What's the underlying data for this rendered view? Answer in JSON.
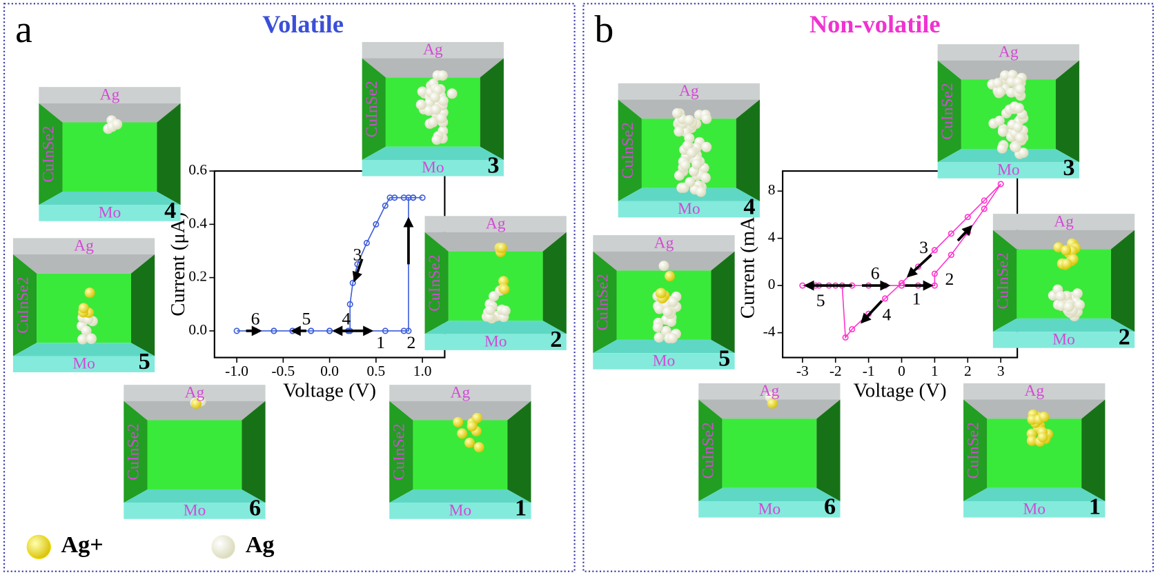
{
  "panels": [
    {
      "letter": "a",
      "title": "Volatile",
      "title_color": "#3a4fd8",
      "cells": [
        {
          "top": "Ag",
          "side": "CuInSe2",
          "bottom": "Mo",
          "number": "4"
        },
        {
          "top": "Ag",
          "side": "CuInSe2",
          "bottom": "Mo",
          "number": "3"
        },
        {
          "top": "Ag",
          "side": "CuInSe2",
          "bottom": "Mo",
          "number": "5"
        },
        {
          "top": "Ag",
          "side": "CuInSe2",
          "bottom": "Mo",
          "number": "2"
        },
        {
          "top": "Ag",
          "side": "CuInSe2",
          "bottom": "Mo",
          "number": "6"
        },
        {
          "top": "Ag",
          "side": "CuInSe2",
          "bottom": "Mo",
          "number": "1"
        }
      ]
    },
    {
      "letter": "b",
      "title": "Non-volatile",
      "title_color": "#f032d0",
      "cells": [
        {
          "top": "Ag",
          "side": "CuInSe2",
          "bottom": "Mo",
          "number": "4"
        },
        {
          "top": "Ag",
          "side": "CuInSe2",
          "bottom": "Mo",
          "number": "3"
        },
        {
          "top": "Ag",
          "side": "CuInSe2",
          "bottom": "Mo",
          "number": "5"
        },
        {
          "top": "Ag",
          "side": "CuInSe2",
          "bottom": "Mo",
          "number": "2"
        },
        {
          "top": "Ag",
          "side": "CuInSe2",
          "bottom": "Mo",
          "number": "6"
        },
        {
          "top": "Ag",
          "side": "CuInSe2",
          "bottom": "Mo",
          "number": "1"
        }
      ]
    }
  ],
  "legend": [
    {
      "label": "Ag+",
      "color": "#f2e20a"
    },
    {
      "label": "Ag",
      "color": "#f4f4e4"
    }
  ],
  "chart_data": [
    {
      "type": "line",
      "x_label": "Voltage (V)",
      "y_label": "Current (μA)",
      "xlim": [
        -1.24,
        1.24
      ],
      "ylim": [
        -0.1,
        0.6
      ],
      "xticks": [
        {
          "value": -1,
          "label": "-1.0"
        },
        -0.5,
        {
          "value": 0,
          "label": "0.0"
        },
        0.5,
        {
          "value": 1,
          "label": "1.0"
        }
      ],
      "yticks": [
        {
          "value": 0,
          "label": "0.0"
        },
        0.2,
        0.4,
        0.6
      ],
      "x": [
        0,
        0.2,
        0.4,
        0.6,
        0.8,
        0.85,
        0.85,
        0.9,
        1.0,
        0.9,
        0.8,
        0.7,
        0.65,
        0.6,
        0.5,
        0.4,
        0.3,
        0.25,
        0.22,
        0.22,
        0.0,
        -0.2,
        -0.4,
        -0.6,
        -0.8,
        -1.0,
        -0.8,
        -0.6,
        -0.4,
        -0.2,
        0.0
      ],
      "series": [
        {
          "color": "#3a5bd9",
          "values": [
            0,
            0,
            0,
            0,
            0,
            0,
            0.5,
            0.5,
            0.5,
            0.5,
            0.5,
            0.5,
            0.5,
            0.47,
            0.4,
            0.33,
            0.25,
            0.18,
            0.1,
            0,
            0,
            0,
            0,
            0,
            0,
            0,
            0,
            0,
            0,
            0,
            0
          ]
        }
      ],
      "annotations": [
        "1",
        "2",
        "3",
        "4",
        "5",
        "6"
      ]
    },
    {
      "type": "line",
      "x_label": "Voltage (V)",
      "y_label": "Current (mA)",
      "xlim": [
        -3.6,
        3.5
      ],
      "ylim": [
        -6.1,
        9.7
      ],
      "xticks": [
        -3,
        -2,
        -1,
        0,
        1,
        2,
        3
      ],
      "yticks": [
        -4,
        0,
        4,
        8
      ],
      "x": [
        0,
        0.5,
        1.0,
        1.0,
        1.5,
        2.0,
        2.5,
        3.0,
        2.5,
        2.0,
        1.5,
        1.0,
        0.5,
        0,
        -0.5,
        -1.0,
        -1.5,
        -1.7,
        -1.8,
        -2.2,
        -2.6,
        -3.0,
        -2.5,
        -2.0,
        -1.5,
        -1.0,
        -0.5,
        0
      ],
      "series": [
        {
          "color": "#ff33cc",
          "values": [
            0,
            0,
            0,
            1.0,
            2.6,
            4.5,
            6.5,
            8.6,
            7.2,
            5.8,
            4.4,
            3.0,
            1.6,
            0.2,
            -1.1,
            -2.4,
            -3.7,
            -4.4,
            0,
            0,
            0,
            0,
            0,
            0,
            0,
            0,
            0,
            0
          ]
        }
      ],
      "annotations": [
        "1",
        "2",
        "3",
        "4",
        "5",
        "6"
      ]
    }
  ]
}
